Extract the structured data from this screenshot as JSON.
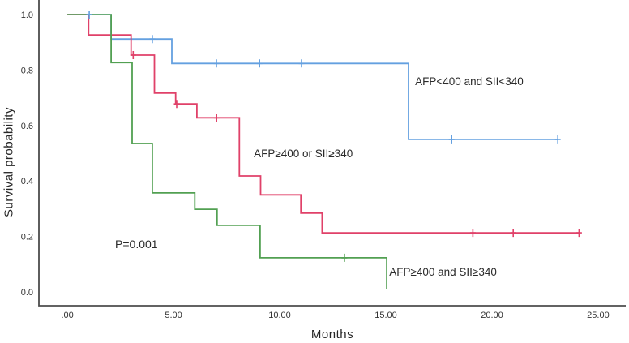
{
  "chart_data": {
    "type": "line",
    "subtype": "kaplan-meier-step",
    "title": "",
    "xlabel": "Months",
    "ylabel": "Survival probability",
    "xlim": [
      -1.34,
      26.3
    ],
    "ylim": [
      -0.05,
      1.053
    ],
    "grid": false,
    "legend_position": "inline-labels",
    "axis_color": "#4d4d4d",
    "text_color": "#2b2b2b",
    "x_ticks": [
      {
        "value": 0,
        "label": ".00"
      },
      {
        "value": 5,
        "label": "5.00"
      },
      {
        "value": 10,
        "label": "10.00"
      },
      {
        "value": 15,
        "label": "15.00"
      },
      {
        "value": 20,
        "label": "20.00"
      },
      {
        "value": 25,
        "label": "25.00"
      }
    ],
    "y_ticks": [
      {
        "value": 0.0,
        "label": "0.0"
      },
      {
        "value": 0.2,
        "label": "0.2"
      },
      {
        "value": 0.4,
        "label": "0.4"
      },
      {
        "value": 0.6,
        "label": "0.6"
      },
      {
        "value": 0.8,
        "label": "0.8"
      },
      {
        "value": 1.0,
        "label": "1.0"
      }
    ],
    "series": [
      {
        "id": "afp-low-sii-low",
        "name": "AFP<400 and SII<340",
        "color": "#64A0E0",
        "steps": [
          [
            0,
            1.0
          ],
          [
            2.06,
            0.912
          ],
          [
            4.92,
            0.824
          ],
          [
            16.07,
            0.55
          ]
        ],
        "end_x": 23.1,
        "censored": [
          [
            1.03,
            1.0
          ],
          [
            4.0,
            0.912
          ],
          [
            7.02,
            0.824
          ],
          [
            9.05,
            0.824
          ],
          [
            11.03,
            0.824
          ],
          [
            18.1,
            0.55
          ],
          [
            23.1,
            0.55
          ]
        ],
        "label": {
          "text": "AFP<400 and SII<340",
          "x": 16.38,
          "y": 0.746
        }
      },
      {
        "id": "afp-high-or-sii-high",
        "name": "AFP≥400 or SII≥340",
        "color": "#E04169",
        "steps": [
          [
            0,
            1.0
          ],
          [
            1.0,
            0.927
          ],
          [
            3.0,
            0.854
          ],
          [
            4.1,
            0.717
          ],
          [
            5.1,
            0.678
          ],
          [
            6.1,
            0.628
          ],
          [
            8.1,
            0.418
          ],
          [
            9.1,
            0.35
          ],
          [
            11.0,
            0.284
          ],
          [
            12.0,
            0.213
          ]
        ],
        "end_x": 24.1,
        "censored": [
          [
            3.1,
            0.854
          ],
          [
            5.15,
            0.678
          ],
          [
            7.03,
            0.628
          ],
          [
            19.1,
            0.213
          ],
          [
            21.0,
            0.213
          ],
          [
            24.1,
            0.213
          ]
        ],
        "label": {
          "text": "AFP≥400 or SII≥340",
          "x": 8.78,
          "y": 0.485
        }
      },
      {
        "id": "afp-high-and-sii-high",
        "name": "AFP≥400 and SII≥340",
        "color": "#52A052",
        "steps": [
          [
            0,
            1.0
          ],
          [
            2.06,
            0.827
          ],
          [
            3.05,
            0.535
          ],
          [
            4.0,
            0.357
          ],
          [
            6.0,
            0.298
          ],
          [
            7.05,
            0.24
          ],
          [
            9.08,
            0.123
          ],
          [
            15.04,
            0.01
          ]
        ],
        "end_x": 15.04,
        "censored": [
          [
            13.05,
            0.123
          ]
        ],
        "label": {
          "text": "AFP≥400 and SII≥340",
          "x": 15.16,
          "y": 0.058
        }
      }
    ],
    "annotations": [
      {
        "text": "P=0.001",
        "x": 2.25,
        "y": 0.158
      }
    ]
  }
}
